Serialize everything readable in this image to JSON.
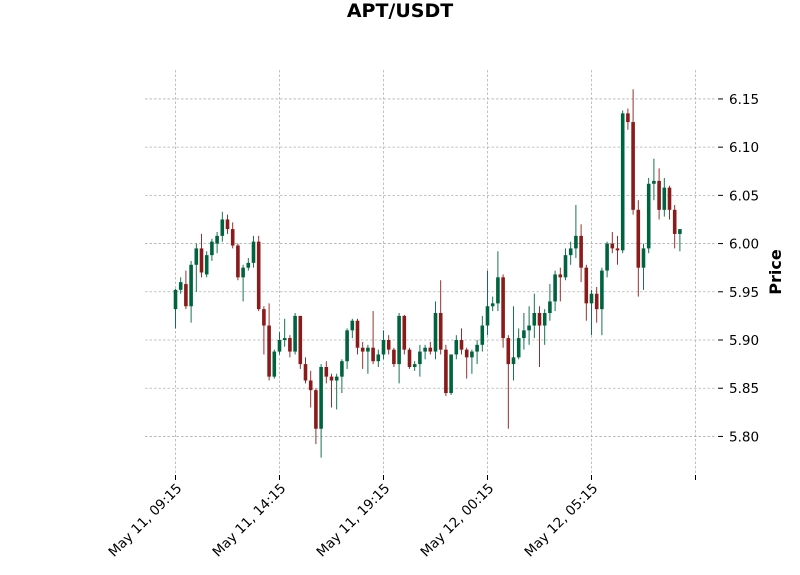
{
  "chart_data": {
    "type": "candlestick",
    "title": "APT/USDT",
    "ylabel": "Price",
    "xlabel": "",
    "ylim": [
      5.76,
      6.18
    ],
    "y_ticks": [
      "5.80",
      "5.85",
      "5.90",
      "5.95",
      "6.00",
      "6.05",
      "6.10",
      "6.15"
    ],
    "x_ticks": [
      {
        "index": 0,
        "label": "May 11, 09:15"
      },
      {
        "index": 20,
        "label": "May 11, 14:15"
      },
      {
        "index": 40,
        "label": "May 11, 19:15"
      },
      {
        "index": 60,
        "label": "May 12, 00:15"
      },
      {
        "index": 80,
        "label": "May 12, 05:15"
      },
      {
        "index": 100,
        "label": ""
      }
    ],
    "interval": "15min",
    "grid": true,
    "colors": {
      "up": "#006340",
      "down": "#8b1a1a"
    },
    "ohlc": [
      [
        5.932,
        5.953,
        5.912,
        5.952
      ],
      [
        5.952,
        5.965,
        5.948,
        5.96
      ],
      [
        5.958,
        5.972,
        5.932,
        5.935
      ],
      [
        5.935,
        5.982,
        5.918,
        5.978
      ],
      [
        5.978,
        6.0,
        5.95,
        5.995
      ],
      [
        5.995,
        6.01,
        5.965,
        5.97
      ],
      [
        5.968,
        5.992,
        5.965,
        5.988
      ],
      [
        5.988,
        6.005,
        5.982,
        6.002
      ],
      [
        6.0,
        6.012,
        5.99,
        6.008
      ],
      [
        6.008,
        6.033,
        6.002,
        6.025
      ],
      [
        6.025,
        6.03,
        6.01,
        6.015
      ],
      [
        6.015,
        6.022,
        5.995,
        5.998
      ],
      [
        5.998,
        6.0,
        5.962,
        5.965
      ],
      [
        5.965,
        5.978,
        5.94,
        5.975
      ],
      [
        5.975,
        5.985,
        5.972,
        5.98
      ],
      [
        5.98,
        6.008,
        5.975,
        6.002
      ],
      [
        6.002,
        6.008,
        5.93,
        5.932
      ],
      [
        5.932,
        5.935,
        5.885,
        5.915
      ],
      [
        5.915,
        5.938,
        5.858,
        5.862
      ],
      [
        5.862,
        5.89,
        5.86,
        5.888
      ],
      [
        5.888,
        5.908,
        5.885,
        5.9
      ],
      [
        5.9,
        5.922,
        5.893,
        5.902
      ],
      [
        5.902,
        5.905,
        5.882,
        5.888
      ],
      [
        5.888,
        5.928,
        5.885,
        5.925
      ],
      [
        5.925,
        5.925,
        5.87,
        5.875
      ],
      [
        5.875,
        5.882,
        5.855,
        5.858
      ],
      [
        5.858,
        5.868,
        5.83,
        5.848
      ],
      [
        5.848,
        5.85,
        5.792,
        5.808
      ],
      [
        5.808,
        5.875,
        5.778,
        5.872
      ],
      [
        5.872,
        5.878,
        5.855,
        5.862
      ],
      [
        5.862,
        5.865,
        5.83,
        5.858
      ],
      [
        5.858,
        5.865,
        5.828,
        5.862
      ],
      [
        5.862,
        5.88,
        5.845,
        5.878
      ],
      [
        5.878,
        5.912,
        5.87,
        5.91
      ],
      [
        5.91,
        5.922,
        5.902,
        5.92
      ],
      [
        5.92,
        5.922,
        5.885,
        5.892
      ],
      [
        5.892,
        5.898,
        5.87,
        5.888
      ],
      [
        5.888,
        5.895,
        5.865,
        5.892
      ],
      [
        5.892,
        5.93,
        5.875,
        5.878
      ],
      [
        5.878,
        5.89,
        5.872,
        5.885
      ],
      [
        5.885,
        5.91,
        5.88,
        5.9
      ],
      [
        5.9,
        5.905,
        5.885,
        5.89
      ],
      [
        5.89,
        5.892,
        5.872,
        5.875
      ],
      [
        5.875,
        5.928,
        5.855,
        5.925
      ],
      [
        5.925,
        5.926,
        5.885,
        5.89
      ],
      [
        5.89,
        5.892,
        5.87,
        5.872
      ],
      [
        5.872,
        5.878,
        5.868,
        5.875
      ],
      [
        5.875,
        5.895,
        5.862,
        5.888
      ],
      [
        5.888,
        5.895,
        5.88,
        5.892
      ],
      [
        5.892,
        5.898,
        5.885,
        5.888
      ],
      [
        5.888,
        5.94,
        5.88,
        5.928
      ],
      [
        5.928,
        5.962,
        5.885,
        5.89
      ],
      [
        5.89,
        5.895,
        5.842,
        5.845
      ],
      [
        5.845,
        5.885,
        5.843,
        5.885
      ],
      [
        5.885,
        5.905,
        5.88,
        5.9
      ],
      [
        5.9,
        5.912,
        5.885,
        5.89
      ],
      [
        5.89,
        5.892,
        5.86,
        5.882
      ],
      [
        5.882,
        5.89,
        5.865,
        5.888
      ],
      [
        5.888,
        5.9,
        5.875,
        5.895
      ],
      [
        5.895,
        5.925,
        5.888,
        5.915
      ],
      [
        5.915,
        5.972,
        5.905,
        5.935
      ],
      [
        5.935,
        5.945,
        5.93,
        5.938
      ],
      [
        5.938,
        5.992,
        5.93,
        5.965
      ],
      [
        5.965,
        5.968,
        5.892,
        5.902
      ],
      [
        5.902,
        5.905,
        5.808,
        5.875
      ],
      [
        5.875,
        5.935,
        5.858,
        5.882
      ],
      [
        5.882,
        5.912,
        5.88,
        5.902
      ],
      [
        5.902,
        5.928,
        5.89,
        5.91
      ],
      [
        5.91,
        5.935,
        5.895,
        5.915
      ],
      [
        5.915,
        5.948,
        5.902,
        5.928
      ],
      [
        5.928,
        5.935,
        5.872,
        5.915
      ],
      [
        5.915,
        5.932,
        5.895,
        5.928
      ],
      [
        5.928,
        5.958,
        5.92,
        5.94
      ],
      [
        5.94,
        5.972,
        5.93,
        5.968
      ],
      [
        5.968,
        5.975,
        5.94,
        5.965
      ],
      [
        5.965,
        5.995,
        5.962,
        5.988
      ],
      [
        5.988,
        6.002,
        5.978,
        5.995
      ],
      [
        5.995,
        6.04,
        5.985,
        6.008
      ],
      [
        6.008,
        6.02,
        5.96,
        5.975
      ],
      [
        5.975,
        5.978,
        5.92,
        5.938
      ],
      [
        5.938,
        5.952,
        5.905,
        5.948
      ],
      [
        5.948,
        5.955,
        5.918,
        5.932
      ],
      [
        5.932,
        5.975,
        5.905,
        5.972
      ],
      [
        5.972,
        6.002,
        5.965,
        6.0
      ],
      [
        6.0,
        6.012,
        5.99,
        5.995
      ],
      [
        5.995,
        6.008,
        5.978,
        5.993
      ],
      [
        5.993,
        6.138,
        5.99,
        6.135
      ],
      [
        6.135,
        6.14,
        6.118,
        6.126
      ],
      [
        6.126,
        6.16,
        6.03,
        6.035
      ],
      [
        6.035,
        6.045,
        5.945,
        5.975
      ],
      [
        5.975,
        6.0,
        5.952,
        5.995
      ],
      [
        5.995,
        6.068,
        5.99,
        6.062
      ],
      [
        6.062,
        6.088,
        6.045,
        6.065
      ],
      [
        6.065,
        6.078,
        6.025,
        6.035
      ],
      [
        6.035,
        6.068,
        6.028,
        6.058
      ],
      [
        6.058,
        6.06,
        6.025,
        6.035
      ],
      [
        6.035,
        6.04,
        5.995,
        6.01
      ],
      [
        6.01,
        6.015,
        5.992,
        6.015
      ]
    ]
  }
}
